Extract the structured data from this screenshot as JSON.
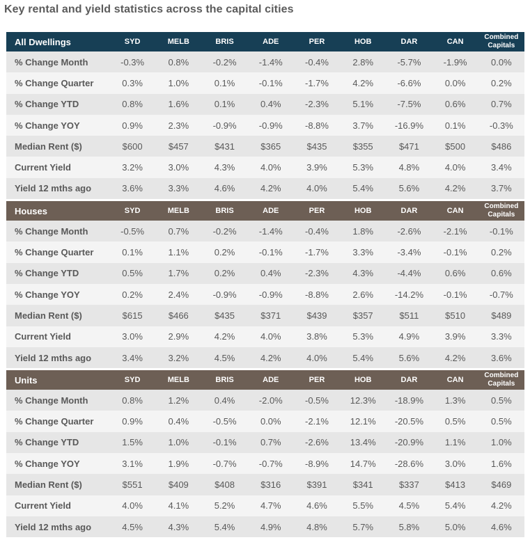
{
  "title": "Key rental and yield statistics across the capital cities",
  "columns": [
    "SYD",
    "MELB",
    "BRIS",
    "ADE",
    "PER",
    "HOB",
    "DAR",
    "CAN"
  ],
  "combined_label": [
    "Combined",
    "Capitals"
  ],
  "sections": [
    {
      "name": "All Dwellings",
      "rows": [
        {
          "label": "% Change Month",
          "values": [
            "-0.3%",
            "0.8%",
            "-0.2%",
            "-1.4%",
            "-0.4%",
            "2.8%",
            "-5.7%",
            "-1.9%",
            "0.0%"
          ]
        },
        {
          "label": "% Change Quarter",
          "values": [
            "0.3%",
            "1.0%",
            "0.1%",
            "-0.1%",
            "-1.7%",
            "4.2%",
            "-6.6%",
            "0.0%",
            "0.2%"
          ]
        },
        {
          "label": "% Change YTD",
          "values": [
            "0.8%",
            "1.6%",
            "0.1%",
            "0.4%",
            "-2.3%",
            "5.1%",
            "-7.5%",
            "0.6%",
            "0.7%"
          ]
        },
        {
          "label": "% Change YOY",
          "values": [
            "0.9%",
            "2.3%",
            "-0.9%",
            "-0.9%",
            "-8.8%",
            "3.7%",
            "-16.9%",
            "0.1%",
            "-0.3%"
          ]
        },
        {
          "label": "Median Rent ($)",
          "values": [
            "$600",
            "$457",
            "$431",
            "$365",
            "$435",
            "$355",
            "$471",
            "$500",
            "$486"
          ]
        },
        {
          "label": "Current Yield",
          "values": [
            "3.2%",
            "3.0%",
            "4.3%",
            "4.0%",
            "3.9%",
            "5.3%",
            "4.8%",
            "4.0%",
            "3.4%"
          ]
        },
        {
          "label": "Yield 12 mths ago",
          "values": [
            "3.6%",
            "3.3%",
            "4.6%",
            "4.2%",
            "4.0%",
            "5.4%",
            "5.6%",
            "4.2%",
            "3.7%"
          ]
        }
      ]
    },
    {
      "name": "Houses",
      "rows": [
        {
          "label": "% Change Month",
          "values": [
            "-0.5%",
            "0.7%",
            "-0.2%",
            "-1.4%",
            "-0.4%",
            "1.8%",
            "-2.6%",
            "-2.1%",
            "-0.1%"
          ]
        },
        {
          "label": "% Change Quarter",
          "values": [
            "0.1%",
            "1.1%",
            "0.2%",
            "-0.1%",
            "-1.7%",
            "3.3%",
            "-3.4%",
            "-0.1%",
            "0.2%"
          ]
        },
        {
          "label": "% Change YTD",
          "values": [
            "0.5%",
            "1.7%",
            "0.2%",
            "0.4%",
            "-2.3%",
            "4.3%",
            "-4.4%",
            "0.6%",
            "0.6%"
          ]
        },
        {
          "label": "% Change YOY",
          "values": [
            "0.2%",
            "2.4%",
            "-0.9%",
            "-0.9%",
            "-8.8%",
            "2.6%",
            "-14.2%",
            "-0.1%",
            "-0.7%"
          ]
        },
        {
          "label": "Median Rent ($)",
          "values": [
            "$615",
            "$466",
            "$435",
            "$371",
            "$439",
            "$357",
            "$511",
            "$510",
            "$489"
          ]
        },
        {
          "label": "Current Yield",
          "values": [
            "3.0%",
            "2.9%",
            "4.2%",
            "4.0%",
            "3.8%",
            "5.3%",
            "4.9%",
            "3.9%",
            "3.3%"
          ]
        },
        {
          "label": "Yield 12 mths ago",
          "values": [
            "3.4%",
            "3.2%",
            "4.5%",
            "4.2%",
            "4.0%",
            "5.4%",
            "5.6%",
            "4.2%",
            "3.6%"
          ]
        }
      ]
    },
    {
      "name": "Units",
      "rows": [
        {
          "label": "% Change Month",
          "values": [
            "0.8%",
            "1.2%",
            "0.4%",
            "-2.0%",
            "-0.5%",
            "12.3%",
            "-18.9%",
            "1.3%",
            "0.5%"
          ]
        },
        {
          "label": "% Change Quarter",
          "values": [
            "0.9%",
            "0.4%",
            "-0.5%",
            "0.0%",
            "-2.1%",
            "12.1%",
            "-20.5%",
            "0.5%",
            "0.5%"
          ]
        },
        {
          "label": "% Change YTD",
          "values": [
            "1.5%",
            "1.0%",
            "-0.1%",
            "0.7%",
            "-2.6%",
            "13.4%",
            "-20.9%",
            "1.1%",
            "1.0%"
          ]
        },
        {
          "label": "% Change YOY",
          "values": [
            "3.1%",
            "1.9%",
            "-0.7%",
            "-0.7%",
            "-8.9%",
            "14.7%",
            "-28.6%",
            "3.0%",
            "1.6%"
          ]
        },
        {
          "label": "Median Rent ($)",
          "values": [
            "$551",
            "$409",
            "$408",
            "$316",
            "$391",
            "$341",
            "$337",
            "$413",
            "$469"
          ]
        },
        {
          "label": "Current Yield",
          "values": [
            "4.0%",
            "4.1%",
            "5.2%",
            "4.7%",
            "4.6%",
            "5.5%",
            "4.5%",
            "5.4%",
            "4.2%"
          ]
        },
        {
          "label": "Yield 12 mths ago",
          "values": [
            "4.5%",
            "4.3%",
            "5.4%",
            "4.9%",
            "4.8%",
            "5.7%",
            "5.8%",
            "5.0%",
            "4.6%"
          ]
        }
      ]
    }
  ],
  "colors": {
    "all_dwellings_header": "#173f55",
    "houses_header": "#6d5f55",
    "units_header": "#6d5f55",
    "row_dark": "#e6e6e6",
    "row_light": "#f4f4f4",
    "text": "#595959",
    "title_text": "#5b5b5b"
  }
}
